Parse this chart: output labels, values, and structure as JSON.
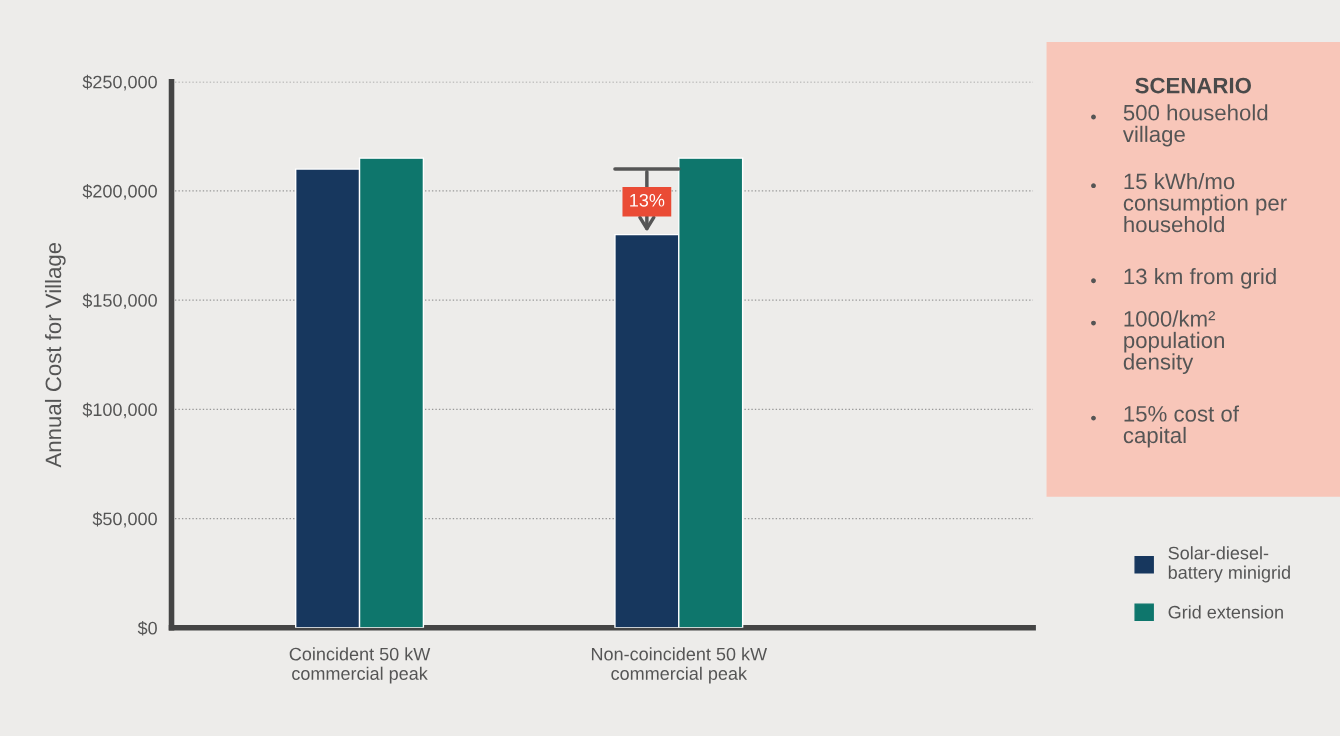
{
  "chart_data": [
    {
      "type": "bar",
      "ylabel": "Annual Cost for Village",
      "categories": [
        "Coincident 50 kW\ncommercial peak",
        "Non-coincident 50 kW\ncommercial peak"
      ],
      "series": [
        {
          "name": "Solar-diesel-\nbattery minigrid",
          "color": "#17375e",
          "values": [
            210000,
            180000
          ]
        },
        {
          "name": "Grid extension",
          "color": "#0e766c",
          "values": [
            215000,
            215000
          ]
        }
      ],
      "ylim": [
        0,
        250000
      ],
      "yticks": [
        {
          "value": 0,
          "label": "$0"
        },
        {
          "value": 50000,
          "label": "$50,000"
        },
        {
          "value": 100000,
          "label": "$100,000"
        },
        {
          "value": 150000,
          "label": "$150,000"
        },
        {
          "value": 200000,
          "label": "$200,000"
        },
        {
          "value": 250000,
          "label": "$250,000"
        }
      ],
      "grid": "y",
      "legend": "right",
      "annotations": [
        {
          "text": "13%",
          "x": "Non-coincident 50 kW\ncommercial peak",
          "y": 195000
        }
      ]
    },
    {
      "type": "other",
      "title": "SCENARIO",
      "annotations": [
        "500 household\nvillage",
        "15 kWh/mo\nconsumption per\nhousehold",
        "13 km from grid",
        "1000/km²\npopulation\ndensity",
        "15% cost of\ncapital"
      ]
    }
  ]
}
